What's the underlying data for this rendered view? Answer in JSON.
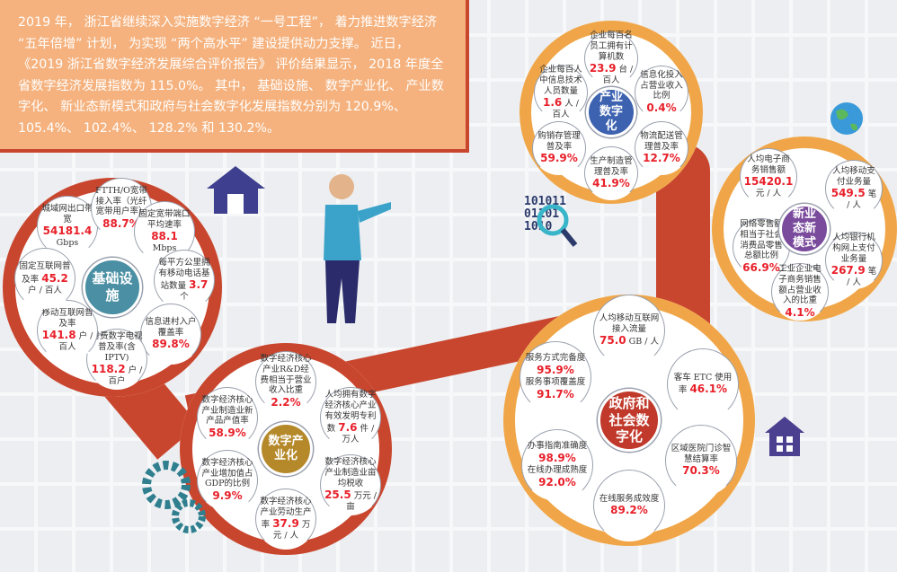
{
  "intro": "2019 年， 浙江省继续深入实施数字经济 “一号工程”， 着力推进数字经济 “五年倍增” 计划， 为实现 “两个高水平” 建设提供动力支撑。 近日， 《2019 浙江省数字经济发展综合评价报告》 评价结果显示， 2018 年度全省数字经济发展指数为 115.0%。 其中， 基础设施、 数字产业化、 产业数字化、 新业态新模式和政府与社会数字化发展指数分别为 120.9%、 105.4%、 102.4%、 128.2% 和 130.2%。",
  "colors": {
    "red": "#c9462e",
    "orange": "#f0a648",
    "value": "#e8202a",
    "infra": "#4a8fa3",
    "industry_digital": "#3d62b0",
    "new_forms": "#7a4b9c",
    "digital_industry": "#b5892a",
    "government": "#c0392b"
  },
  "binary_text": [
    "101011",
    "01101",
    "1010"
  ],
  "sections": [
    {
      "id": "infrastructure",
      "title": "基础设施",
      "items": [
        {
          "t": "城域网出口带宽",
          "v": "54181.4",
          "u": "Gbps"
        },
        {
          "t": "FTTH/O宽带接入率（光纤宽带用户率）",
          "v": "88.7%",
          "u": ""
        },
        {
          "t": "固定宽带端口平均速率",
          "v": "88.1",
          "u": "Mbps"
        },
        {
          "t": "每平方公里拥有移动电话基站数量",
          "v": "3.7",
          "u": "个"
        },
        {
          "t": "信息进村入户覆盖率",
          "v": "89.8%",
          "u": ""
        },
        {
          "t": "付费数字电视普及率(含IPTV)",
          "v": "118.2",
          "u": "户 / 百户"
        },
        {
          "t": "移动互联网普及率",
          "v": "141.8",
          "u": "户 / 百人"
        },
        {
          "t": "固定互联网普及率",
          "v": "45.2",
          "u": "户 / 百人"
        }
      ]
    },
    {
      "id": "industry-digitization",
      "title": "产业数字化",
      "items": [
        {
          "t": "企业每百名员工拥有计算机数",
          "v": "23.9",
          "u": "台 / 百人"
        },
        {
          "t": "企业每百人中信息技术人员数量",
          "v": "1.6",
          "u": "人 / 百人"
        },
        {
          "t": "信息化投入占营业收入比例",
          "v": "0.4%",
          "u": ""
        },
        {
          "t": "购销存管理普及率",
          "v": "59.9%",
          "u": ""
        },
        {
          "t": "物流配送管理普及率",
          "v": "12.7%",
          "u": ""
        },
        {
          "t": "生产制造管理普及率",
          "v": "41.9%",
          "u": ""
        }
      ]
    },
    {
      "id": "new-forms",
      "title": "新业态新模式",
      "items": [
        {
          "t": "人均电子商务销售额",
          "v": "15420.1",
          "u": "元 / 人"
        },
        {
          "t": "人均移动支付业务量",
          "v": "549.5",
          "u": "笔 / 人"
        },
        {
          "t": "网络零售额相当于社会消费品零售总额比例",
          "v": "66.9%",
          "u": ""
        },
        {
          "t": "人均银行机构网上支付业务量",
          "v": "267.9",
          "u": "笔 / 人"
        },
        {
          "t": "工业企业电子商务销售额占营业收入的比重",
          "v": "4.1%",
          "u": ""
        }
      ]
    },
    {
      "id": "digital-industrialization",
      "title": "数字产业化",
      "items": [
        {
          "t": "数字经济核心产业R&D经费相当于营业收入比重",
          "v": "2.2%",
          "u": ""
        },
        {
          "t": "数字经济核心产业制造业新产品产值率",
          "v": "58.9%",
          "u": ""
        },
        {
          "t": "人均拥有数字经济核心产业有效发明专利数",
          "v": "7.6",
          "u": "件 / 万人"
        },
        {
          "t": "数字经济核心产业增加值占GDP的比例",
          "v": "9.9%",
          "u": ""
        },
        {
          "t": "数字经济核心产业制造业亩均税收",
          "v": "25.5",
          "u": "万元 / 亩"
        },
        {
          "t": "数字经济核心产业劳动生产率",
          "v": "37.9",
          "u": "万元 / 人"
        }
      ]
    },
    {
      "id": "government-society",
      "title": "政府和社会数字化",
      "items": [
        {
          "t": "人均移动互联网接入流量",
          "v": "75.0",
          "u": "GB / 人"
        },
        {
          "t": "服务方式完备度",
          "v": "95.9%",
          "u": "",
          "t2": "服务事项覆盖度",
          "v2": "91.7%"
        },
        {
          "t": "客车 ETC 使用率",
          "v": "46.1%",
          "u": ""
        },
        {
          "t": "办事指南准确度",
          "v": "98.9%",
          "u": "",
          "t2": "在线办理成熟度",
          "v2": "92.0%"
        },
        {
          "t": "区域医院门诊智慧结算率",
          "v": "70.3%",
          "u": ""
        },
        {
          "t": "在线服务成效度",
          "v": "89.2%",
          "u": ""
        }
      ]
    }
  ]
}
